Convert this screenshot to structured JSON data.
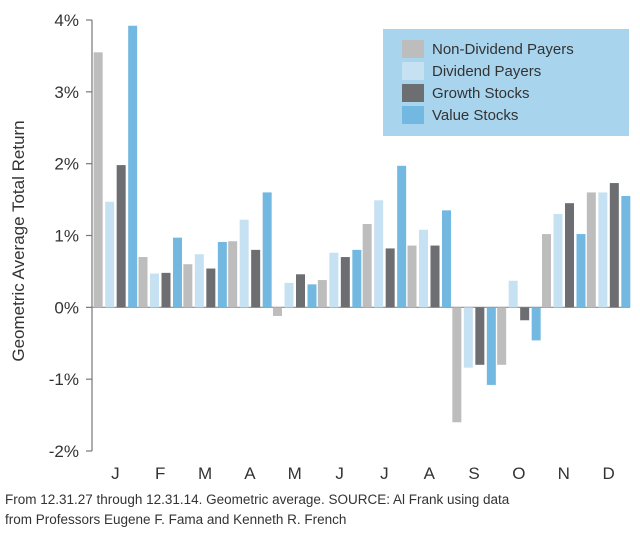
{
  "chart_data": {
    "type": "bar",
    "title": "",
    "xlabel": "",
    "ylabel": "Geometric Average Total Return",
    "ylim": [
      -2,
      4
    ],
    "yticks": [
      4,
      3,
      2,
      1,
      0,
      -1,
      -2
    ],
    "ytick_labels": [
      "4%",
      "3%",
      "2%",
      "1%",
      "0%",
      "-1%",
      "-2%"
    ],
    "categories": [
      "J",
      "F",
      "M",
      "A",
      "M",
      "J",
      "J",
      "A",
      "S",
      "O",
      "N",
      "D"
    ],
    "legend_position": "top-right",
    "series": [
      {
        "name": "Non-Dividend Payers",
        "color": "#bdbdbd",
        "values": [
          3.55,
          0.7,
          0.6,
          0.92,
          -0.12,
          0.38,
          1.16,
          0.86,
          -1.6,
          -0.8,
          1.02,
          1.6
        ]
      },
      {
        "name": "Dividend Payers",
        "color": "#c6e2f2",
        "values": [
          1.47,
          0.47,
          0.74,
          1.22,
          0.34,
          0.76,
          1.49,
          1.08,
          -0.84,
          0.37,
          1.3,
          1.6
        ]
      },
      {
        "name": "Growth Stocks",
        "color": "#6d6e71",
        "values": [
          1.98,
          0.48,
          0.54,
          0.8,
          0.46,
          0.7,
          0.82,
          0.86,
          -0.8,
          -0.18,
          1.45,
          1.73
        ]
      },
      {
        "name": "Value Stocks",
        "color": "#72b8e0",
        "values": [
          3.92,
          0.97,
          0.91,
          1.6,
          0.32,
          0.8,
          1.97,
          1.35,
          -1.08,
          -0.46,
          1.02,
          1.55
        ]
      }
    ]
  },
  "footnote": {
    "line1": "From 12.31.27 through 12.31.14. Geometric average. SOURCE: Al Frank using data",
    "line2": "from Professors Eugene F. Fama and Kenneth R. French"
  },
  "colors": {
    "legend_bg": "#a9d4ee",
    "axis": "#777777"
  }
}
